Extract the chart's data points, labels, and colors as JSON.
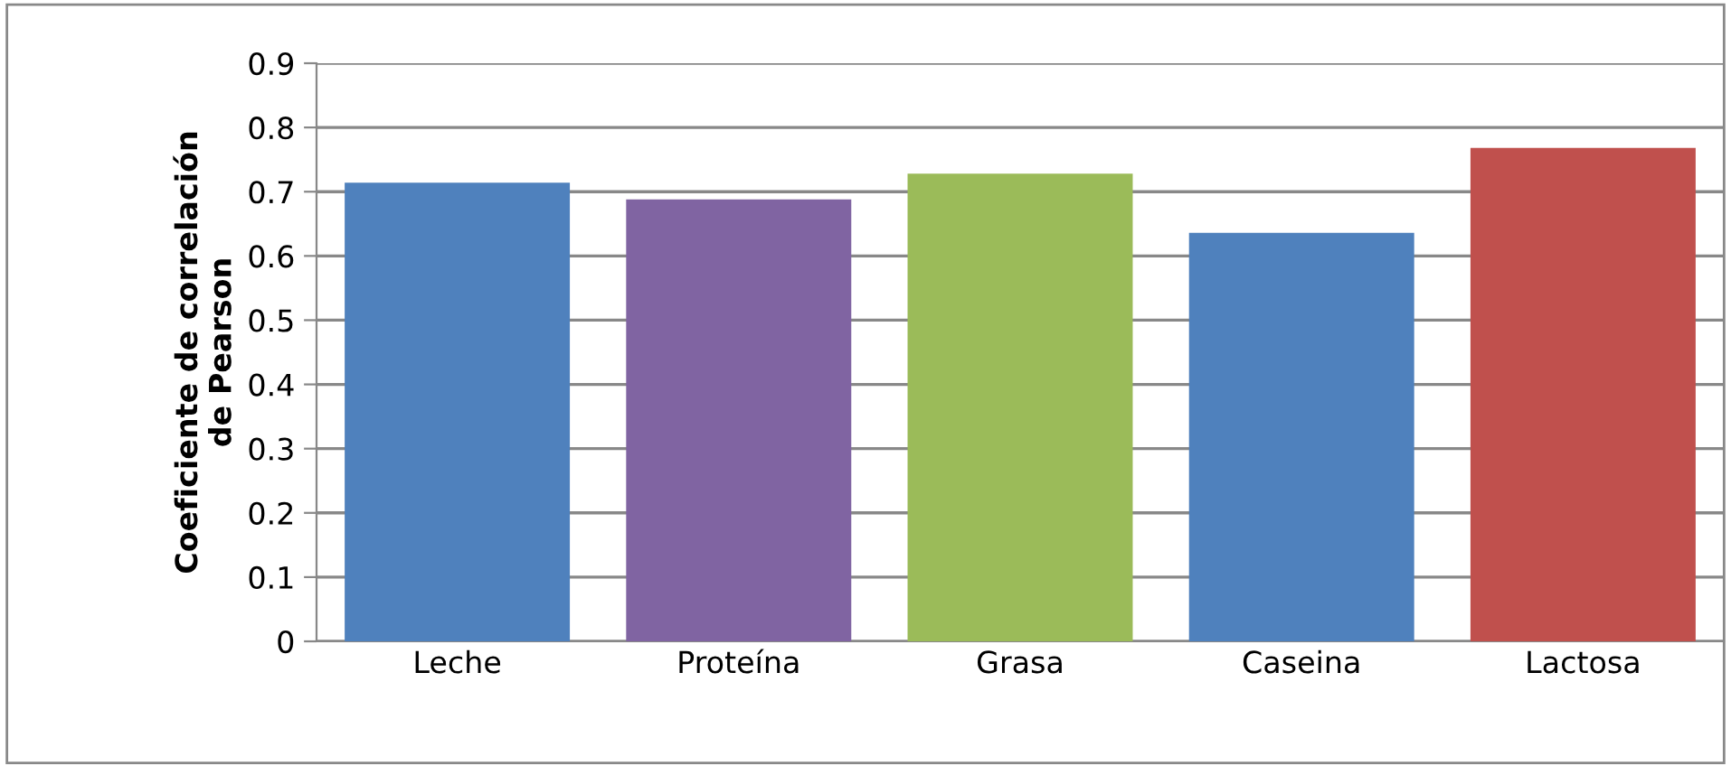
{
  "chart_data": {
    "type": "bar",
    "ylabel": "Coeficiente de correlación\nde Pearson",
    "categories": [
      "Leche",
      "Proteína",
      "Grasa",
      "Caseina",
      "Lactosa"
    ],
    "values": [
      0.714,
      0.688,
      0.728,
      0.636,
      0.768
    ],
    "colors": [
      "#4f81bd",
      "#8064a2",
      "#9bbb59",
      "#4f81bd",
      "#c0504d"
    ],
    "ylim": [
      0,
      0.9
    ],
    "yticks": [
      0,
      0.1,
      0.2,
      0.3,
      0.4,
      0.5,
      0.6,
      0.7,
      0.8,
      0.9
    ],
    "grid": "y"
  }
}
